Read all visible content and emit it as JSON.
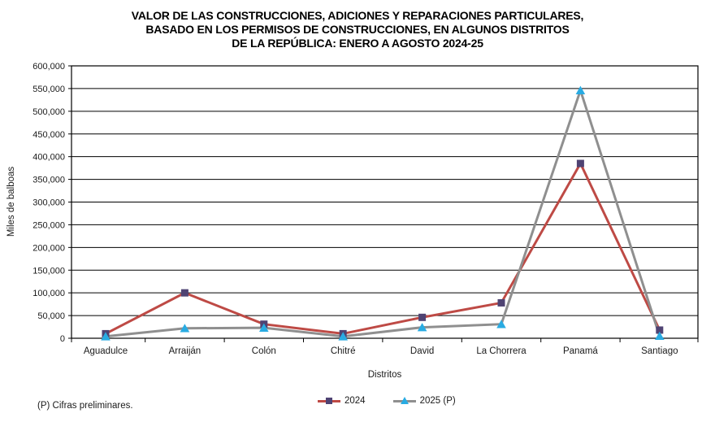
{
  "title": {
    "line1": "VALOR DE LAS CONSTRUCCIONES, ADICIONES Y REPARACIONES PARTICULARES,",
    "line2": "BASADO EN LOS PERMISOS DE CONSTRUCCIONES, EN ALGUNOS DISTRITOS",
    "line3": "DE LA REPÚBLICA: ENERO A AGOSTO 2024-25"
  },
  "footnote": "(P) Cifras  preliminares.",
  "colors": {
    "series_2024_line": "#be4a45",
    "series_2024_marker": "#4f4373",
    "series_2025_line": "#8f8f8f",
    "series_2025_marker": "#29abe2",
    "grid": "#000000",
    "text": "#1a1a1a"
  },
  "chart_data": {
    "type": "line",
    "categories": [
      "Aguadulce",
      "Arraiján",
      "Colón",
      "Chitré",
      "David",
      "La Chorrera",
      "Panamá",
      "Santiago"
    ],
    "series": [
      {
        "name": "2024",
        "values": [
          10000,
          100000,
          31000,
          10000,
          46000,
          78000,
          385000,
          18000
        ],
        "line_color": "#be4a45",
        "marker": "square",
        "marker_color": "#4f4373"
      },
      {
        "name": "2025 (P)",
        "values": [
          4000,
          22000,
          23000,
          4000,
          24000,
          31000,
          546000,
          5000
        ],
        "line_color": "#8f8f8f",
        "marker": "triangle",
        "marker_color": "#29abe2"
      }
    ],
    "title": "VALOR DE LAS CONSTRUCCIONES, ADICIONES Y REPARACIONES PARTICULARES, BASADO EN LOS PERMISOS DE CONSTRUCCIONES, EN ALGUNOS DISTRITOS DE LA REPÚBLICA: ENERO A AGOSTO 2024-25",
    "xlabel": "Distritos",
    "ylabel": "Miles de balboas",
    "ylim": [
      0,
      600000
    ],
    "ytick_step": 50000,
    "grid": true,
    "legend_position": "bottom"
  }
}
